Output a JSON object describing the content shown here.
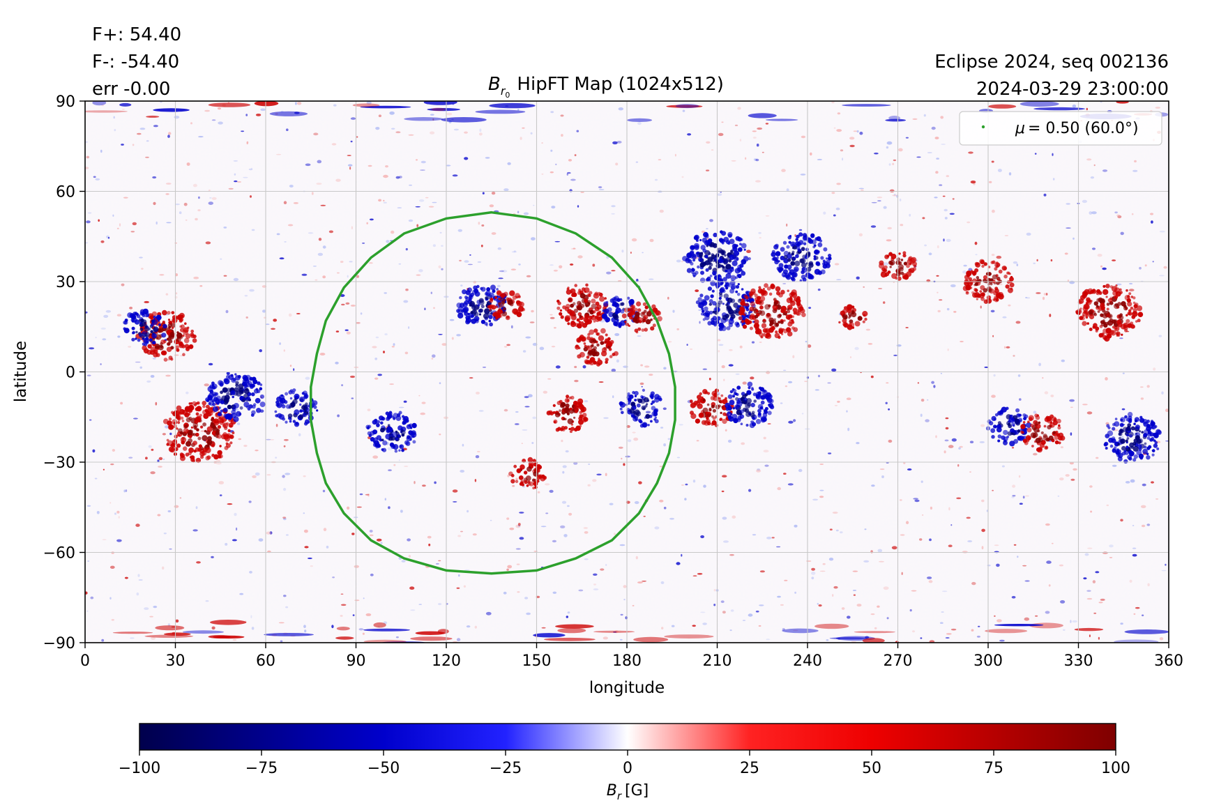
{
  "header": {
    "flux_pos": "F+: 54.40",
    "flux_neg": "F-: -54.40",
    "err": "err -0.00",
    "title_main": "HipFT Map (1024x512)",
    "title_symbol": "B",
    "title_sub": "r",
    "title_subsub": "0",
    "event": "Eclipse 2024, seq 002136",
    "datetime": "2024-03-29 23:00:00"
  },
  "colors": {
    "positive": "#cc0000",
    "positive_strong": "#8b0000",
    "negative": "#0000cc",
    "negative_strong": "#00007a",
    "contour": "#2ca02c",
    "grid": "#c8c8c8"
  },
  "chart_data": {
    "type": "heatmap",
    "xlabel": "longitude",
    "ylabel": "latitude",
    "xlim": [
      0,
      360
    ],
    "ylim": [
      -90,
      90
    ],
    "xticks": [
      0,
      30,
      60,
      90,
      120,
      150,
      180,
      210,
      240,
      270,
      300,
      330,
      360
    ],
    "yticks": [
      -90,
      -60,
      -30,
      0,
      30,
      60,
      90
    ],
    "ytick_labels": [
      "−90",
      "−60",
      "−30",
      "0",
      "30",
      "60",
      "90"
    ],
    "grid": true,
    "colormap": "seismic",
    "clim": [
      -100,
      100
    ],
    "regions": [
      {
        "lon": 27,
        "lat": 12,
        "sign": 1,
        "r": 8
      },
      {
        "lon": 20,
        "lat": 15,
        "sign": -1,
        "r": 6
      },
      {
        "lon": 38,
        "lat": -20,
        "sign": 1,
        "r": 10
      },
      {
        "lon": 50,
        "lat": -8,
        "sign": -1,
        "r": 8
      },
      {
        "lon": 70,
        "lat": -12,
        "sign": -1,
        "r": 6
      },
      {
        "lon": 132,
        "lat": 22,
        "sign": -1,
        "r": 7
      },
      {
        "lon": 140,
        "lat": 22,
        "sign": 1,
        "r": 5
      },
      {
        "lon": 165,
        "lat": 22,
        "sign": 1,
        "r": 7
      },
      {
        "lon": 178,
        "lat": 20,
        "sign": -1,
        "r": 5
      },
      {
        "lon": 185,
        "lat": 18,
        "sign": 1,
        "r": 5
      },
      {
        "lon": 170,
        "lat": 8,
        "sign": 1,
        "r": 6
      },
      {
        "lon": 102,
        "lat": -20,
        "sign": -1,
        "r": 7
      },
      {
        "lon": 160,
        "lat": -14,
        "sign": 1,
        "r": 6
      },
      {
        "lon": 185,
        "lat": -12,
        "sign": -1,
        "r": 6
      },
      {
        "lon": 147,
        "lat": -34,
        "sign": 1,
        "r": 5
      },
      {
        "lon": 208,
        "lat": -12,
        "sign": 1,
        "r": 6
      },
      {
        "lon": 220,
        "lat": -11,
        "sign": -1,
        "r": 7
      },
      {
        "lon": 213,
        "lat": 22,
        "sign": -1,
        "r": 8
      },
      {
        "lon": 228,
        "lat": 20,
        "sign": 1,
        "r": 9
      },
      {
        "lon": 255,
        "lat": 18,
        "sign": 1,
        "r": 4
      },
      {
        "lon": 307,
        "lat": -18,
        "sign": -1,
        "r": 6
      },
      {
        "lon": 318,
        "lat": -20,
        "sign": 1,
        "r": 6
      },
      {
        "lon": 348,
        "lat": -22,
        "sign": -1,
        "r": 8
      },
      {
        "lon": 340,
        "lat": 20,
        "sign": 1,
        "r": 9
      },
      {
        "lon": 300,
        "lat": 30,
        "sign": 1,
        "r": 7
      },
      {
        "lon": 210,
        "lat": 38,
        "sign": -1,
        "r": 9
      },
      {
        "lon": 238,
        "lat": 38,
        "sign": -1,
        "r": 8
      },
      {
        "lon": 270,
        "lat": 35,
        "sign": 1,
        "r": 5
      }
    ],
    "contour": {
      "lon": [
        135,
        150,
        163,
        175,
        184,
        190,
        194,
        196,
        196,
        194,
        190,
        184,
        175,
        163,
        150,
        135,
        120,
        106,
        95,
        86,
        80,
        77,
        75,
        75,
        77,
        80,
        86,
        95,
        106,
        120,
        135
      ],
      "lat": [
        53,
        51,
        46,
        38,
        28,
        17,
        6,
        -5,
        -16,
        -27,
        -37,
        -47,
        -56,
        -62,
        -66,
        -67,
        -66,
        -62,
        -56,
        -47,
        -37,
        -27,
        -16,
        -5,
        6,
        17,
        28,
        38,
        46,
        51,
        53
      ]
    },
    "legend": {
      "position": "top-right",
      "symbol": "μ",
      "label": "= 0.50 (60.0°)"
    },
    "colorbar": {
      "ticks": [
        -100,
        -75,
        -50,
        -25,
        0,
        25,
        50,
        75,
        100
      ],
      "tick_labels": [
        "−100",
        "−75",
        "−50",
        "−25",
        "0",
        "25",
        "50",
        "75",
        "100"
      ],
      "label_symbol": "B",
      "label_sub": "r",
      "label_unit": "[G]"
    }
  }
}
